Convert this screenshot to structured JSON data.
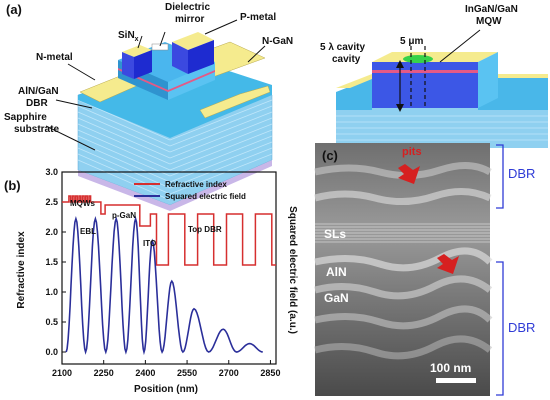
{
  "panel_a": {
    "label": "(a)",
    "left_labels": {
      "dielectric_mirror": "Dielectric\nmirror",
      "p_metal": "P-metal",
      "sinx": "SiN",
      "sinx_sub": "x",
      "n_gan": "N-GaN",
      "n_metal": "N-metal",
      "aln_gan_dbr": "AlN/GaN\nDBR",
      "sapphire": "Sapphire\nsubstrate"
    },
    "right_labels": {
      "ingan_mqw": "InGaN/GaN\nMQW",
      "aperture": "5 μm",
      "cavity": "5 λ cavity\ncavity"
    }
  },
  "panel_b": {
    "label": "(b)",
    "annotations": {
      "mqws": "MQWs",
      "ebl": "EBL",
      "p_gan": "p-GaN",
      "ito": "ITO",
      "top_dbr": "Top DBR"
    }
  },
  "panel_c": {
    "label": "(c)",
    "pits": "pits",
    "sls": "SLs",
    "aln": "AlN",
    "gan": "GaN",
    "dbr_top": "DBR",
    "dbr_bottom": "DBR",
    "scale_bar": "100 nm"
  },
  "colors": {
    "refractive": "#d62f2f",
    "efield": "#2b2f9a",
    "dbr_text": "#2f3bd6",
    "metal": "#f5eb8e",
    "metal_block": "#1e2bd0",
    "dbr_layer": "#7fc7ec",
    "pits_arrow": "#d62020",
    "mqw_green": "#37d24a"
  },
  "chart_data": {
    "type": "line",
    "xlabel": "Position (nm)",
    "ylabel": "Refractive index",
    "y2label": "Squared electric field (a.u.)",
    "xlim": [
      2100,
      2870
    ],
    "ylim": [
      -0.2,
      3.0
    ],
    "xticks": [
      2100,
      2250,
      2400,
      2550,
      2700,
      2850
    ],
    "yticks": [
      0.0,
      0.5,
      1.0,
      1.5,
      2.0,
      2.5,
      3.0
    ],
    "legend_position": "top-right",
    "series": [
      {
        "name": "Refractive index",
        "x": [
          2100,
          2125,
          2125,
          2131,
          2131,
          2137,
          2137,
          2143,
          2143,
          2149,
          2149,
          2155,
          2155,
          2161,
          2161,
          2167,
          2167,
          2173,
          2173,
          2179,
          2179,
          2185,
          2185,
          2191,
          2191,
          2197,
          2197,
          2203,
          2203,
          2240,
          2240,
          2255,
          2255,
          2380,
          2380,
          2418,
          2418,
          2440,
          2440,
          2483,
          2483,
          2542,
          2542,
          2588,
          2588,
          2646,
          2646,
          2692,
          2692,
          2750,
          2750,
          2796,
          2796,
          2855,
          2855,
          2870
        ],
        "y": [
          2.5,
          2.5,
          2.6,
          2.6,
          2.5,
          2.5,
          2.6,
          2.6,
          2.5,
          2.5,
          2.6,
          2.6,
          2.5,
          2.5,
          2.6,
          2.6,
          2.5,
          2.5,
          2.6,
          2.6,
          2.5,
          2.5,
          2.6,
          2.6,
          2.5,
          2.5,
          2.6,
          2.6,
          2.5,
          2.5,
          2.3,
          2.3,
          2.45,
          2.45,
          2.1,
          2.1,
          2.3,
          2.3,
          1.45,
          1.45,
          2.3,
          2.3,
          1.45,
          1.45,
          2.3,
          2.3,
          1.45,
          1.45,
          2.3,
          2.3,
          1.45,
          1.45,
          2.3,
          2.3,
          1.45,
          1.45
        ]
      },
      {
        "name": "Squared electric field",
        "peaks": [
          {
            "x": 2150,
            "y": 2.22
          },
          {
            "x": 2220,
            "y": 2.22
          },
          {
            "x": 2295,
            "y": 2.22
          },
          {
            "x": 2365,
            "y": 2.22
          },
          {
            "x": 2425,
            "y": 1.85
          },
          {
            "x": 2495,
            "y": 1.18
          },
          {
            "x": 2575,
            "y": 0.72
          },
          {
            "x": 2680,
            "y": 0.38
          },
          {
            "x": 2775,
            "y": 0.14
          }
        ],
        "baseline": 0.0
      }
    ]
  }
}
